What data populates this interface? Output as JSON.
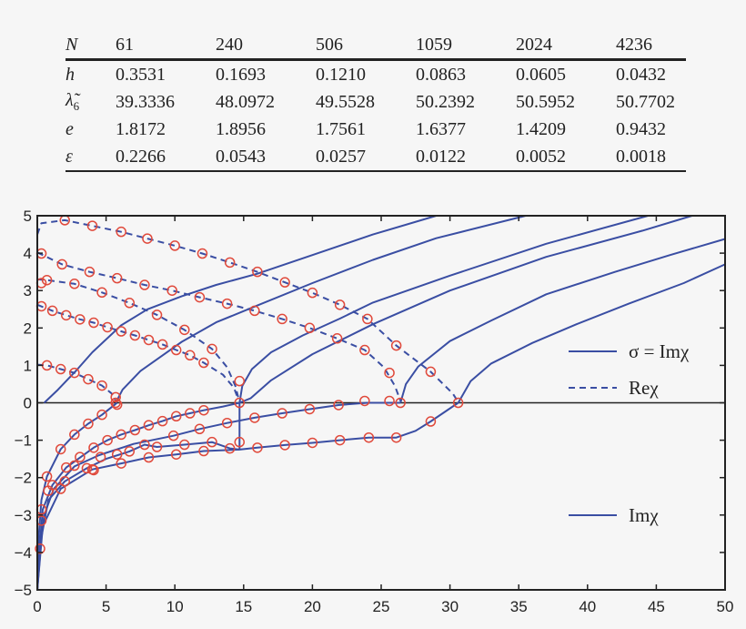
{
  "table": {
    "header": {
      "label": "N",
      "values": [
        "61",
        "240",
        "506",
        "1059",
        "2024",
        "4236"
      ]
    },
    "rows": [
      {
        "label": "h",
        "sub": "",
        "values": [
          "0.3531",
          "0.1693",
          "0.1210",
          "0.0863",
          "0.0605",
          "0.0432"
        ]
      },
      {
        "label": "λ̃",
        "sub": "6",
        "values": [
          "39.3336",
          "48.0972",
          "49.5528",
          "50.2392",
          "50.5952",
          "50.7702"
        ]
      },
      {
        "label": "e",
        "sub": "",
        "values": [
          "1.8172",
          "1.8956",
          "1.7561",
          "1.6377",
          "1.4209",
          "0.9432"
        ]
      },
      {
        "label": "ε",
        "sub": "",
        "values": [
          "0.2266",
          "0.0543",
          "0.0257",
          "0.0122",
          "0.0052",
          "0.0018"
        ]
      }
    ]
  },
  "chart_data": {
    "type": "line",
    "xlim": [
      0,
      50
    ],
    "ylim": [
      -5,
      5
    ],
    "xticks": [
      "0",
      "5",
      "10",
      "15",
      "20",
      "25",
      "30",
      "35",
      "40",
      "45",
      "50"
    ],
    "yticks": [
      "−5",
      "−4",
      "−3",
      "−2",
      "−1",
      "0",
      "1",
      "2",
      "3",
      "4",
      "5"
    ],
    "grid": false,
    "colors": {
      "line": "#3a4ea3",
      "marker": "#e0493b",
      "axis": "#222222"
    },
    "legend": [
      {
        "label": "σ = Imχ",
        "style": "solid"
      },
      {
        "label": "Reχ",
        "style": "dashed"
      },
      {
        "label": "Imχ",
        "style": "solid"
      }
    ],
    "series": [
      {
        "style": "solid",
        "points": [
          [
            0.5,
            0
          ],
          [
            1.5,
            0.35
          ],
          [
            2.8,
            0.85
          ],
          [
            4,
            1.35
          ],
          [
            6.1,
            2.07
          ],
          [
            8,
            2.5
          ],
          [
            10.5,
            2.85
          ],
          [
            13,
            3.15
          ],
          [
            16,
            3.45
          ],
          [
            20,
            3.95
          ],
          [
            24.4,
            4.5
          ],
          [
            29,
            5
          ]
        ]
      },
      {
        "style": "solid",
        "points": [
          [
            5.7,
            0
          ],
          [
            6.2,
            0.35
          ],
          [
            7.5,
            0.85
          ],
          [
            10.5,
            1.63
          ],
          [
            13,
            2.15
          ],
          [
            16,
            2.6
          ],
          [
            20,
            3.2
          ],
          [
            24.4,
            3.82
          ],
          [
            29,
            4.4
          ],
          [
            35.5,
            5
          ]
        ]
      },
      {
        "style": "solid",
        "points": [
          [
            14.7,
            0
          ],
          [
            14.9,
            0.45
          ],
          [
            15.6,
            0.9
          ],
          [
            17,
            1.35
          ],
          [
            19.3,
            1.8
          ],
          [
            22,
            2.25
          ],
          [
            24.4,
            2.68
          ],
          [
            30,
            3.4
          ],
          [
            37,
            4.25
          ],
          [
            44.4,
            5
          ]
        ]
      },
      {
        "style": "solid",
        "points": [
          [
            14.7,
            0
          ],
          [
            15.5,
            0.12
          ],
          [
            17,
            0.6
          ],
          [
            20,
            1.3
          ],
          [
            24.4,
            2.1
          ],
          [
            30,
            3.0
          ],
          [
            37,
            3.9
          ],
          [
            44,
            4.6
          ],
          [
            47.6,
            5
          ]
        ]
      },
      {
        "style": "solid",
        "points": [
          [
            26.4,
            0
          ],
          [
            26.8,
            0.5
          ],
          [
            27.7,
            0.97
          ],
          [
            30,
            1.65
          ],
          [
            33,
            2.2
          ],
          [
            37,
            2.9
          ],
          [
            42,
            3.5
          ],
          [
            46,
            3.95
          ],
          [
            50,
            4.38
          ]
        ]
      },
      {
        "style": "solid",
        "points": [
          [
            30.6,
            0
          ],
          [
            31.5,
            0.58
          ],
          [
            33,
            1.05
          ],
          [
            36,
            1.6
          ],
          [
            39.2,
            2.1
          ],
          [
            43,
            2.65
          ],
          [
            47,
            3.2
          ],
          [
            50,
            3.7
          ]
        ]
      },
      {
        "style": "dashed",
        "points": [
          [
            0,
            1.02
          ],
          [
            0.7,
            1.0
          ],
          [
            1.7,
            0.9
          ],
          [
            2.7,
            0.8
          ],
          [
            3.7,
            0.63
          ],
          [
            4.7,
            0.46
          ],
          [
            5.4,
            0.25
          ],
          [
            5.7,
            0.05
          ]
        ]
      },
      {
        "style": "dashed",
        "points": [
          [
            0,
            2.62
          ],
          [
            1.1,
            2.46
          ],
          [
            2.1,
            2.34
          ],
          [
            3.1,
            2.23
          ],
          [
            4.1,
            2.14
          ],
          [
            5.1,
            2.02
          ],
          [
            6.1,
            1.91
          ],
          [
            7.1,
            1.8
          ],
          [
            8.1,
            1.68
          ],
          [
            9.1,
            1.56
          ],
          [
            10.1,
            1.41
          ],
          [
            11.1,
            1.27
          ],
          [
            12.1,
            1.07
          ],
          [
            13.5,
            0.75
          ],
          [
            14.3,
            0.4
          ],
          [
            14.6,
            0.1
          ]
        ]
      },
      {
        "style": "dashed",
        "points": [
          [
            0,
            3.3
          ],
          [
            0.7,
            3.28
          ],
          [
            2.7,
            3.18
          ],
          [
            4.7,
            2.95
          ],
          [
            6.7,
            2.67
          ],
          [
            8.7,
            2.35
          ],
          [
            10.7,
            1.95
          ],
          [
            12.7,
            1.44
          ],
          [
            13.8,
            0.95
          ],
          [
            14.4,
            0.45
          ],
          [
            14.6,
            0.15
          ]
        ]
      },
      {
        "style": "dashed",
        "points": [
          [
            0,
            4.02
          ],
          [
            1.8,
            3.7
          ],
          [
            3.8,
            3.5
          ],
          [
            5.8,
            3.33
          ],
          [
            7.8,
            3.15
          ],
          [
            9.8,
            3.0
          ],
          [
            11.8,
            2.82
          ],
          [
            13.8,
            2.65
          ],
          [
            15.8,
            2.46
          ],
          [
            17.8,
            2.24
          ],
          [
            19.8,
            2.0
          ],
          [
            21.8,
            1.72
          ],
          [
            23.8,
            1.41
          ],
          [
            25.2,
            0.95
          ],
          [
            26,
            0.45
          ],
          [
            26.4,
            0.05
          ]
        ]
      },
      {
        "style": "dashed",
        "points": [
          [
            0,
            4.5
          ],
          [
            0.3,
            4.8
          ],
          [
            2.0,
            4.88
          ],
          [
            4.0,
            4.73
          ],
          [
            6.1,
            4.57
          ],
          [
            8.0,
            4.39
          ],
          [
            10.0,
            4.2
          ],
          [
            12.0,
            3.99
          ],
          [
            14.0,
            3.75
          ],
          [
            16.0,
            3.5
          ],
          [
            18.0,
            3.22
          ],
          [
            20.0,
            2.94
          ],
          [
            22.0,
            2.62
          ],
          [
            24.0,
            2.24
          ],
          [
            26.1,
            1.53
          ],
          [
            28.6,
            0.83
          ],
          [
            30.2,
            0.25
          ],
          [
            30.6,
            0.02
          ]
        ]
      },
      {
        "style": "solid",
        "points": [
          [
            0,
            -5
          ],
          [
            0.1,
            -3.6
          ],
          [
            0.3,
            -2.6
          ],
          [
            0.7,
            -1.97
          ],
          [
            1.7,
            -1.24
          ],
          [
            2.7,
            -0.85
          ],
          [
            3.7,
            -0.56
          ],
          [
            4.7,
            -0.32
          ],
          [
            5.8,
            0
          ]
        ]
      },
      {
        "style": "solid",
        "points": [
          [
            0,
            -5
          ],
          [
            0.15,
            -3.9
          ],
          [
            0.4,
            -2.85
          ],
          [
            1.1,
            -2.2
          ],
          [
            2.1,
            -1.73
          ],
          [
            4.1,
            -1.2
          ],
          [
            5.1,
            -1.0
          ],
          [
            6.1,
            -0.85
          ],
          [
            7.1,
            -0.73
          ],
          [
            8.1,
            -0.6
          ],
          [
            9.1,
            -0.49
          ],
          [
            10.1,
            -0.36
          ],
          [
            11.1,
            -0.28
          ],
          [
            12.1,
            -0.2
          ],
          [
            13.5,
            -0.1
          ],
          [
            14.7,
            0
          ]
        ]
      },
      {
        "style": "solid",
        "points": [
          [
            0,
            -5
          ],
          [
            0.2,
            -3.9
          ],
          [
            0.5,
            -3.0
          ],
          [
            1.2,
            -2.3
          ],
          [
            2.7,
            -1.7
          ],
          [
            4.5,
            -1.4
          ],
          [
            7,
            -1.1
          ],
          [
            9.9,
            -0.88
          ],
          [
            11.8,
            -0.7
          ],
          [
            13.8,
            -0.54
          ],
          [
            15.8,
            -0.4
          ],
          [
            17.8,
            -0.28
          ],
          [
            19.8,
            -0.17
          ],
          [
            21.9,
            -0.06
          ],
          [
            24,
            0
          ],
          [
            26.4,
            0
          ]
        ]
      },
      {
        "style": "solid",
        "points": [
          [
            0,
            -5
          ],
          [
            0.3,
            -3.6
          ],
          [
            0.8,
            -2.6
          ],
          [
            2.0,
            -2.1
          ],
          [
            3.6,
            -1.75
          ],
          [
            5,
            -1.5
          ],
          [
            6.7,
            -1.3
          ],
          [
            7.8,
            -1.12
          ],
          [
            8.7,
            -1.18
          ],
          [
            10.7,
            -1.12
          ],
          [
            12.7,
            -1.05
          ],
          [
            14.0,
            -1.22
          ],
          [
            14.7,
            -1.25
          ]
        ]
      },
      {
        "style": "solid",
        "points": [
          [
            14.7,
            -1.25
          ],
          [
            14.7,
            0
          ]
        ]
      },
      {
        "style": "solid",
        "points": [
          [
            0,
            -5
          ],
          [
            0.4,
            -3.3
          ],
          [
            1.7,
            -2.3
          ],
          [
            4.0,
            -1.78
          ],
          [
            6.1,
            -1.62
          ],
          [
            8.1,
            -1.46
          ],
          [
            10.1,
            -1.38
          ],
          [
            12.1,
            -1.29
          ],
          [
            14.7,
            -1.25
          ],
          [
            16,
            -1.2
          ],
          [
            18,
            -1.13
          ],
          [
            20,
            -1.07
          ],
          [
            22,
            -1.0
          ],
          [
            24.1,
            -0.93
          ],
          [
            26.1,
            -0.93
          ],
          [
            27.5,
            -0.75
          ],
          [
            28.6,
            -0.5
          ],
          [
            30.6,
            0
          ]
        ]
      }
    ],
    "markers": [
      [
        0.7,
        1.0
      ],
      [
        1.7,
        0.9
      ],
      [
        2.7,
        0.8
      ],
      [
        3.7,
        0.63
      ],
      [
        4.7,
        0.46
      ],
      [
        5.7,
        0.15
      ],
      [
        5.7,
        0
      ],
      [
        5.8,
        -0.05
      ],
      [
        0.3,
        2.58
      ],
      [
        1.1,
        2.46
      ],
      [
        2.1,
        2.34
      ],
      [
        3.1,
        2.23
      ],
      [
        4.1,
        2.14
      ],
      [
        5.1,
        2.02
      ],
      [
        6.1,
        1.91
      ],
      [
        7.1,
        1.8
      ],
      [
        8.1,
        1.68
      ],
      [
        9.1,
        1.56
      ],
      [
        10.1,
        1.41
      ],
      [
        11.1,
        1.27
      ],
      [
        12.1,
        1.07
      ],
      [
        14.7,
        0.58
      ],
      [
        0.3,
        3.2
      ],
      [
        0.7,
        3.28
      ],
      [
        2.7,
        3.18
      ],
      [
        4.7,
        2.95
      ],
      [
        6.7,
        2.67
      ],
      [
        8.7,
        2.35
      ],
      [
        10.7,
        1.95
      ],
      [
        12.7,
        1.44
      ],
      [
        0.3,
        3.99
      ],
      [
        1.8,
        3.7
      ],
      [
        3.8,
        3.5
      ],
      [
        5.8,
        3.33
      ],
      [
        7.8,
        3.15
      ],
      [
        9.8,
        3.0
      ],
      [
        11.8,
        2.82
      ],
      [
        13.8,
        2.65
      ],
      [
        15.8,
        2.46
      ],
      [
        17.8,
        2.24
      ],
      [
        19.8,
        2.0
      ],
      [
        21.8,
        1.72
      ],
      [
        23.8,
        1.41
      ],
      [
        25.6,
        0.8
      ],
      [
        2.0,
        4.88
      ],
      [
        4.0,
        4.73
      ],
      [
        6.1,
        4.57
      ],
      [
        8.0,
        4.39
      ],
      [
        10.0,
        4.2
      ],
      [
        12.0,
        3.99
      ],
      [
        14.0,
        3.75
      ],
      [
        16.0,
        3.5
      ],
      [
        18.0,
        3.22
      ],
      [
        20.0,
        2.94
      ],
      [
        22.0,
        2.62
      ],
      [
        24.0,
        2.24
      ],
      [
        26.1,
        1.53
      ],
      [
        28.6,
        0.83
      ],
      [
        14.7,
        0
      ],
      [
        23.8,
        0.05
      ],
      [
        25.6,
        0.05
      ],
      [
        26.4,
        0
      ],
      [
        30.6,
        0
      ],
      [
        0.7,
        -1.97
      ],
      [
        1.7,
        -1.24
      ],
      [
        2.7,
        -0.85
      ],
      [
        3.7,
        -0.56
      ],
      [
        4.7,
        -0.32
      ],
      [
        2.1,
        -1.73
      ],
      [
        4.1,
        -1.2
      ],
      [
        5.1,
        -1.0
      ],
      [
        6.1,
        -0.85
      ],
      [
        7.1,
        -0.73
      ],
      [
        8.1,
        -0.6
      ],
      [
        9.1,
        -0.49
      ],
      [
        10.1,
        -0.36
      ],
      [
        11.1,
        -0.28
      ],
      [
        12.1,
        -0.2
      ],
      [
        2.7,
        -1.68
      ],
      [
        3.1,
        -1.45
      ],
      [
        4.6,
        -1.45
      ],
      [
        5.8,
        -1.38
      ],
      [
        9.9,
        -0.88
      ],
      [
        11.8,
        -0.7
      ],
      [
        13.8,
        -0.54
      ],
      [
        15.8,
        -0.4
      ],
      [
        17.8,
        -0.28
      ],
      [
        19.8,
        -0.17
      ],
      [
        21.9,
        -0.06
      ],
      [
        6.7,
        -1.3
      ],
      [
        7.8,
        -1.12
      ],
      [
        8.7,
        -1.18
      ],
      [
        10.7,
        -1.12
      ],
      [
        12.7,
        -1.05
      ],
      [
        14.0,
        -1.22
      ],
      [
        14.7,
        -1.05
      ],
      [
        4.0,
        -1.78
      ],
      [
        6.1,
        -1.62
      ],
      [
        8.1,
        -1.46
      ],
      [
        10.1,
        -1.38
      ],
      [
        12.1,
        -1.29
      ],
      [
        16.0,
        -1.2
      ],
      [
        18.0,
        -1.13
      ],
      [
        20.0,
        -1.07
      ],
      [
        22.0,
        -1.0
      ],
      [
        24.1,
        -0.93
      ],
      [
        26.1,
        -0.93
      ],
      [
        28.6,
        -0.5
      ],
      [
        0.3,
        -2.85
      ],
      [
        0.3,
        -3.15
      ],
      [
        0.2,
        -3.9
      ],
      [
        1.1,
        -2.2
      ],
      [
        0.8,
        -2.35
      ],
      [
        1.7,
        -2.3
      ],
      [
        2.0,
        -2.1
      ],
      [
        3.6,
        -1.75
      ],
      [
        4.1,
        -1.8
      ]
    ]
  }
}
